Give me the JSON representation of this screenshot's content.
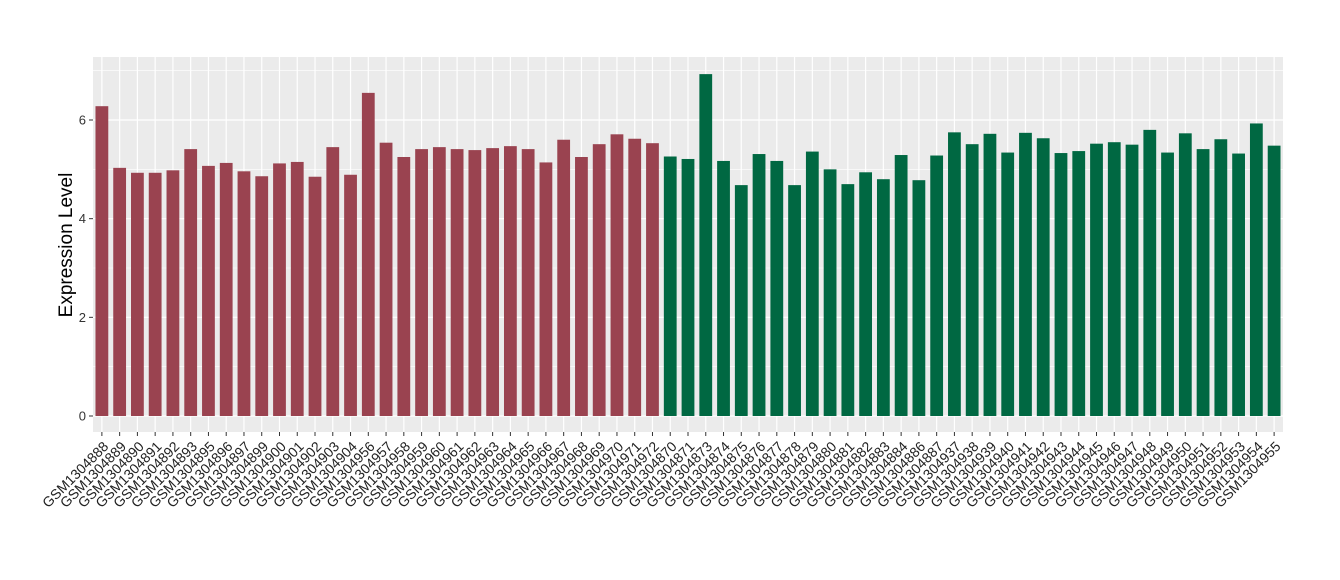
{
  "chart_data": {
    "type": "bar",
    "title": "",
    "xlabel": "",
    "ylabel": "Expression Level",
    "ylim": [
      0,
      7.2
    ],
    "yticks": [
      0,
      2,
      4,
      6
    ],
    "ytick_labels": [
      "0",
      "2",
      "4",
      "6"
    ],
    "grid": true,
    "colors": {
      "panel_background": "#EBEBEB",
      "grid": "#FFFFFF",
      "group_1": "#9A4350",
      "group_2": "#006842"
    },
    "categories": [
      "GSM1304888",
      "GSM1304889",
      "GSM1304890",
      "GSM1304891",
      "GSM1304892",
      "GSM1304893",
      "GSM1304895",
      "GSM1304896",
      "GSM1304897",
      "GSM1304899",
      "GSM1304900",
      "GSM1304901",
      "GSM1304902",
      "GSM1304903",
      "GSM1304904",
      "GSM1304956",
      "GSM1304957",
      "GSM1304958",
      "GSM1304959",
      "GSM1304960",
      "GSM1304961",
      "GSM1304962",
      "GSM1304963",
      "GSM1304964",
      "GSM1304965",
      "GSM1304966",
      "GSM1304967",
      "GSM1304968",
      "GSM1304969",
      "GSM1304970",
      "GSM1304971",
      "GSM1304972",
      "GSM1304870",
      "GSM1304871",
      "GSM1304873",
      "GSM1304874",
      "GSM1304875",
      "GSM1304876",
      "GSM1304877",
      "GSM1304878",
      "GSM1304879",
      "GSM1304880",
      "GSM1304881",
      "GSM1304882",
      "GSM1304883",
      "GSM1304884",
      "GSM1304886",
      "GSM1304887",
      "GSM1304937",
      "GSM1304938",
      "GSM1304939",
      "GSM1304940",
      "GSM1304941",
      "GSM1304942",
      "GSM1304943",
      "GSM1304944",
      "GSM1304945",
      "GSM1304946",
      "GSM1304947",
      "GSM1304948",
      "GSM1304949",
      "GSM1304950",
      "GSM1304951",
      "GSM1304952",
      "GSM1304953",
      "GSM1304954",
      "GSM1304955"
    ],
    "values": [
      6.28,
      5.03,
      4.93,
      4.93,
      4.98,
      5.41,
      5.07,
      5.13,
      4.96,
      4.86,
      5.12,
      5.15,
      4.85,
      5.45,
      4.89,
      6.55,
      5.54,
      5.25,
      5.41,
      5.45,
      5.41,
      5.39,
      5.43,
      5.47,
      5.41,
      5.14,
      5.6,
      5.25,
      5.51,
      5.71,
      5.62,
      5.53,
      5.26,
      5.21,
      6.93,
      5.17,
      4.68,
      5.31,
      5.17,
      4.68,
      5.36,
      5.0,
      4.7,
      4.94,
      4.8,
      5.29,
      4.78,
      5.28,
      5.75,
      5.51,
      5.72,
      5.34,
      5.74,
      5.63,
      5.33,
      5.37,
      5.52,
      5.55,
      5.5,
      5.8,
      5.34,
      5.73,
      5.41,
      5.61,
      5.32,
      5.93,
      5.48
    ],
    "group_sizes": [
      32,
      35
    ]
  }
}
